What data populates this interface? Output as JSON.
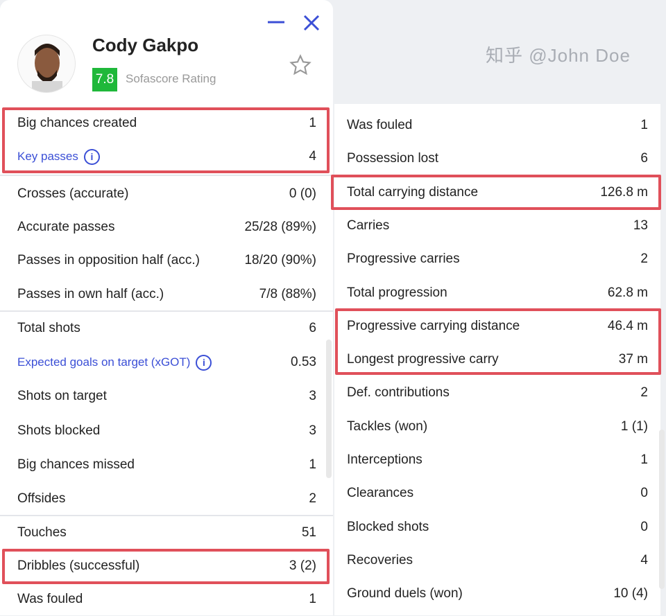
{
  "player": {
    "name": "Cody Gakpo",
    "rating": "7.8",
    "rating_label": "Sofascore Rating",
    "rating_color": "#1fb83a"
  },
  "left_groups": [
    [
      {
        "label": "Big chances created",
        "value": "1"
      },
      {
        "label": "Key passes",
        "value": "4",
        "link": true,
        "info": true
      }
    ],
    [
      {
        "label": "Crosses (accurate)",
        "value": "0 (0)"
      },
      {
        "label": "Accurate passes",
        "value": "25/28 (89%)"
      },
      {
        "label": "Passes in opposition half (acc.)",
        "value": "18/20 (90%)"
      },
      {
        "label": "Passes in own half (acc.)",
        "value": "7/8 (88%)"
      }
    ],
    [
      {
        "label": "Total shots",
        "value": "6"
      },
      {
        "label": "Expected goals on target (xGOT)",
        "value": "0.53",
        "link": true,
        "info": true
      },
      {
        "label": "Shots on target",
        "value": "3"
      },
      {
        "label": "Shots blocked",
        "value": "3"
      },
      {
        "label": "Big chances missed",
        "value": "1"
      },
      {
        "label": "Offsides",
        "value": "2"
      }
    ],
    [
      {
        "label": "Touches",
        "value": "51"
      },
      {
        "label": "Dribbles (successful)",
        "value": "3 (2)"
      },
      {
        "label": "Was fouled",
        "value": "1"
      }
    ]
  ],
  "right_rows": [
    {
      "label": "Was fouled",
      "value": "1"
    },
    {
      "label": "Possession lost",
      "value": "6"
    },
    {
      "label": "Total carrying distance",
      "value": "126.8 m"
    },
    {
      "label": "Carries",
      "value": "13"
    },
    {
      "label": "Progressive carries",
      "value": "2"
    },
    {
      "label": "Total progression",
      "value": "62.8 m"
    },
    {
      "label": "Progressive carrying distance",
      "value": "46.4 m"
    },
    {
      "label": "Longest progressive carry",
      "value": "37 m"
    },
    {
      "label": "Def. contributions",
      "value": "2"
    },
    {
      "label": "Tackles (won)",
      "value": "1 (1)"
    },
    {
      "label": "Interceptions",
      "value": "1"
    },
    {
      "label": "Clearances",
      "value": "0"
    },
    {
      "label": "Blocked shots",
      "value": "0"
    },
    {
      "label": "Recoveries",
      "value": "4"
    },
    {
      "label": "Ground duels (won)",
      "value": "10 (4)"
    }
  ],
  "highlight_color": "#e0505a",
  "accent_color": "#3b4fd6",
  "watermark": "知乎 @John Doe"
}
